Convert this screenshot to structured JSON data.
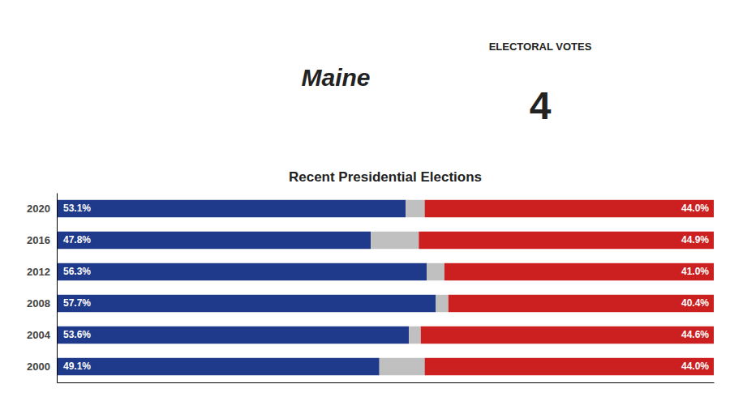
{
  "chart_data": {
    "type": "bar",
    "orientation": "horizontal",
    "stacked": true,
    "title": "Maine",
    "subtitle": "Recent Presidential Elections",
    "annotations": [
      "ELECTORAL VOTES",
      "4"
    ],
    "categories": [
      "2020",
      "2016",
      "2012",
      "2008",
      "2004",
      "2000"
    ],
    "series": [
      {
        "color": "#1F3A8A",
        "values": [
          53.1,
          47.8,
          56.3,
          57.7,
          53.6,
          49.1
        ],
        "value_labels": [
          "53.1%",
          "47.8%",
          "56.3%",
          "57.7%",
          "53.6%",
          "49.1%"
        ]
      },
      {
        "color": "#C0C0C0",
        "values": [
          2.9,
          7.3,
          2.7,
          1.9,
          1.8,
          6.9
        ]
      },
      {
        "color": "#CC2020",
        "values": [
          44.0,
          44.9,
          41.0,
          40.4,
          44.6,
          44.0
        ],
        "value_labels": [
          "44.0%",
          "44.9%",
          "41.0%",
          "40.4%",
          "44.6%",
          "44.0%"
        ]
      }
    ],
    "xlim": [
      0,
      100
    ],
    "grid": false,
    "tick_labels": "y"
  }
}
